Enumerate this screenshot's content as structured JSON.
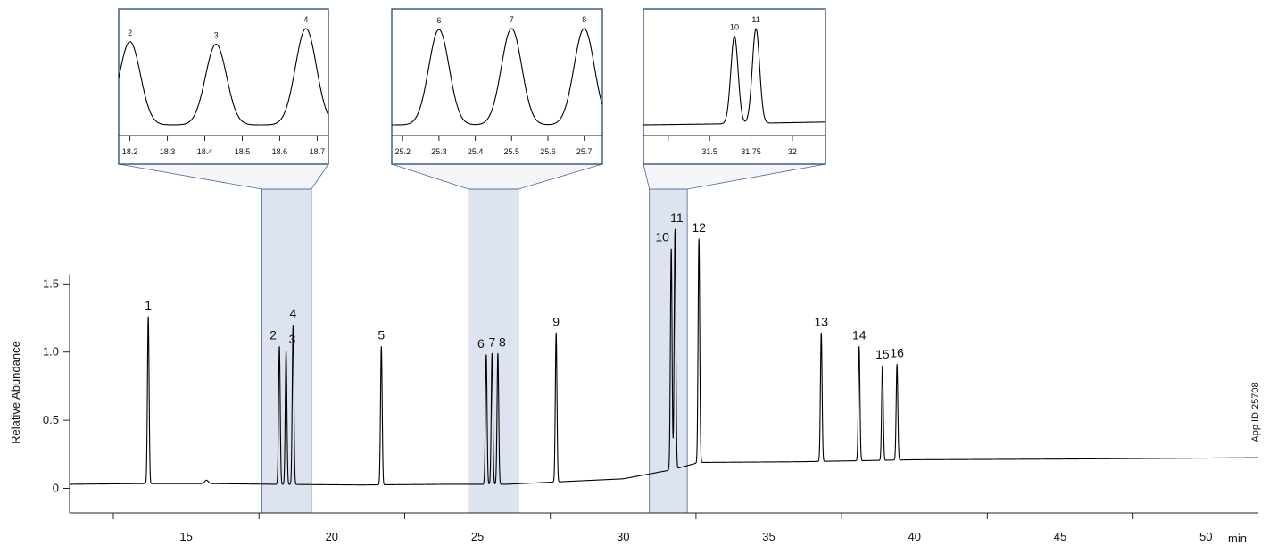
{
  "chart_data": {
    "type": "line",
    "ylabel": "Relative Abundance",
    "xunit": "min",
    "xlim": [
      11,
      51.8
    ],
    "ylim": [
      -0.18,
      1.62
    ],
    "x_ticks_labeled": [
      15,
      20,
      25,
      30,
      35,
      40,
      45,
      50
    ],
    "x_ticks_minor": [
      12.5,
      17.5,
      22.5,
      27.5,
      32.5,
      37.5,
      42.5,
      47.5
    ],
    "y_ticks": [
      0,
      0.5,
      1.0,
      1.5
    ],
    "y_tick_labels": [
      "0",
      "0.5",
      "1.0",
      "1.5"
    ],
    "note": "App ID 25708",
    "baseline": [
      [
        11,
        0.03
      ],
      [
        13.5,
        0.035
      ],
      [
        15.8,
        0.035
      ],
      [
        18,
        0.03
      ],
      [
        21,
        0.025
      ],
      [
        24,
        0.03
      ],
      [
        26,
        0.03
      ],
      [
        28,
        0.05
      ],
      [
        30,
        0.07
      ],
      [
        31.5,
        0.13
      ],
      [
        31.9,
        0.15
      ],
      [
        32.6,
        0.19
      ],
      [
        36,
        0.195
      ],
      [
        40,
        0.21
      ],
      [
        45,
        0.215
      ],
      [
        51.8,
        0.225
      ]
    ],
    "minor_bump": {
      "x": 15.7,
      "height": 0.025
    },
    "peaks": [
      {
        "label": "1",
        "x": 13.7,
        "height": 1.26
      },
      {
        "label": "2",
        "x": 18.2,
        "height": 1.04
      },
      {
        "label": "3",
        "x": 18.43,
        "height": 1.01
      },
      {
        "label": "4",
        "x": 18.67,
        "height": 1.2
      },
      {
        "label": "5",
        "x": 21.7,
        "height": 1.04
      },
      {
        "label": "6",
        "x": 25.3,
        "height": 0.98
      },
      {
        "label": "7",
        "x": 25.5,
        "height": 0.99
      },
      {
        "label": "8",
        "x": 25.7,
        "height": 0.99
      },
      {
        "label": "9",
        "x": 27.7,
        "height": 1.14
      },
      {
        "label": "10",
        "x": 31.65,
        "height": 1.76
      },
      {
        "label": "11",
        "x": 31.78,
        "height": 1.9
      },
      {
        "label": "12",
        "x": 32.6,
        "height": 1.83
      },
      {
        "label": "13",
        "x": 36.8,
        "height": 1.14
      },
      {
        "label": "14",
        "x": 38.1,
        "height": 1.04
      },
      {
        "label": "15",
        "x": 38.9,
        "height": 0.9
      },
      {
        "label": "16",
        "x": 39.4,
        "height": 0.91
      }
    ],
    "highlight_ranges": [
      [
        17.6,
        19.3
      ],
      [
        24.7,
        26.4
      ],
      [
        30.9,
        32.2
      ]
    ],
    "insets": [
      {
        "x_range": [
          18.17,
          18.73
        ],
        "ticks": [
          18.2,
          18.3,
          18.4,
          18.5,
          18.6,
          18.7
        ],
        "tick_labels": [
          "18.2",
          "18.3",
          "18.4",
          "18.5",
          "18.6",
          "18.7"
        ],
        "source_range": [
          17.6,
          19.3
        ],
        "peaks": [
          "2",
          "3",
          "4"
        ]
      },
      {
        "x_range": [
          25.17,
          25.75
        ],
        "ticks": [
          25.2,
          25.3,
          25.4,
          25.5,
          25.6,
          25.7
        ],
        "tick_labels": [
          "25.2",
          "25.3",
          "25.4",
          "25.5",
          "25.6",
          "25.7"
        ],
        "source_range": [
          24.7,
          26.4
        ],
        "peaks": [
          "6",
          "7",
          "8"
        ]
      },
      {
        "x_range": [
          31.1,
          32.2
        ],
        "ticks": [
          31.25,
          31.5,
          31.75,
          32
        ],
        "tick_labels": [
          "",
          "31.5",
          "31.75",
          "32"
        ],
        "source_range": [
          30.9,
          32.2
        ],
        "peaks": [
          "10",
          "11"
        ]
      }
    ]
  },
  "colors": {
    "line": "#000000",
    "highlight_fill": "#dde3ef",
    "highlight_stroke": "#4a6a92",
    "inset_border": "#2f5577",
    "axis": "#222222"
  }
}
